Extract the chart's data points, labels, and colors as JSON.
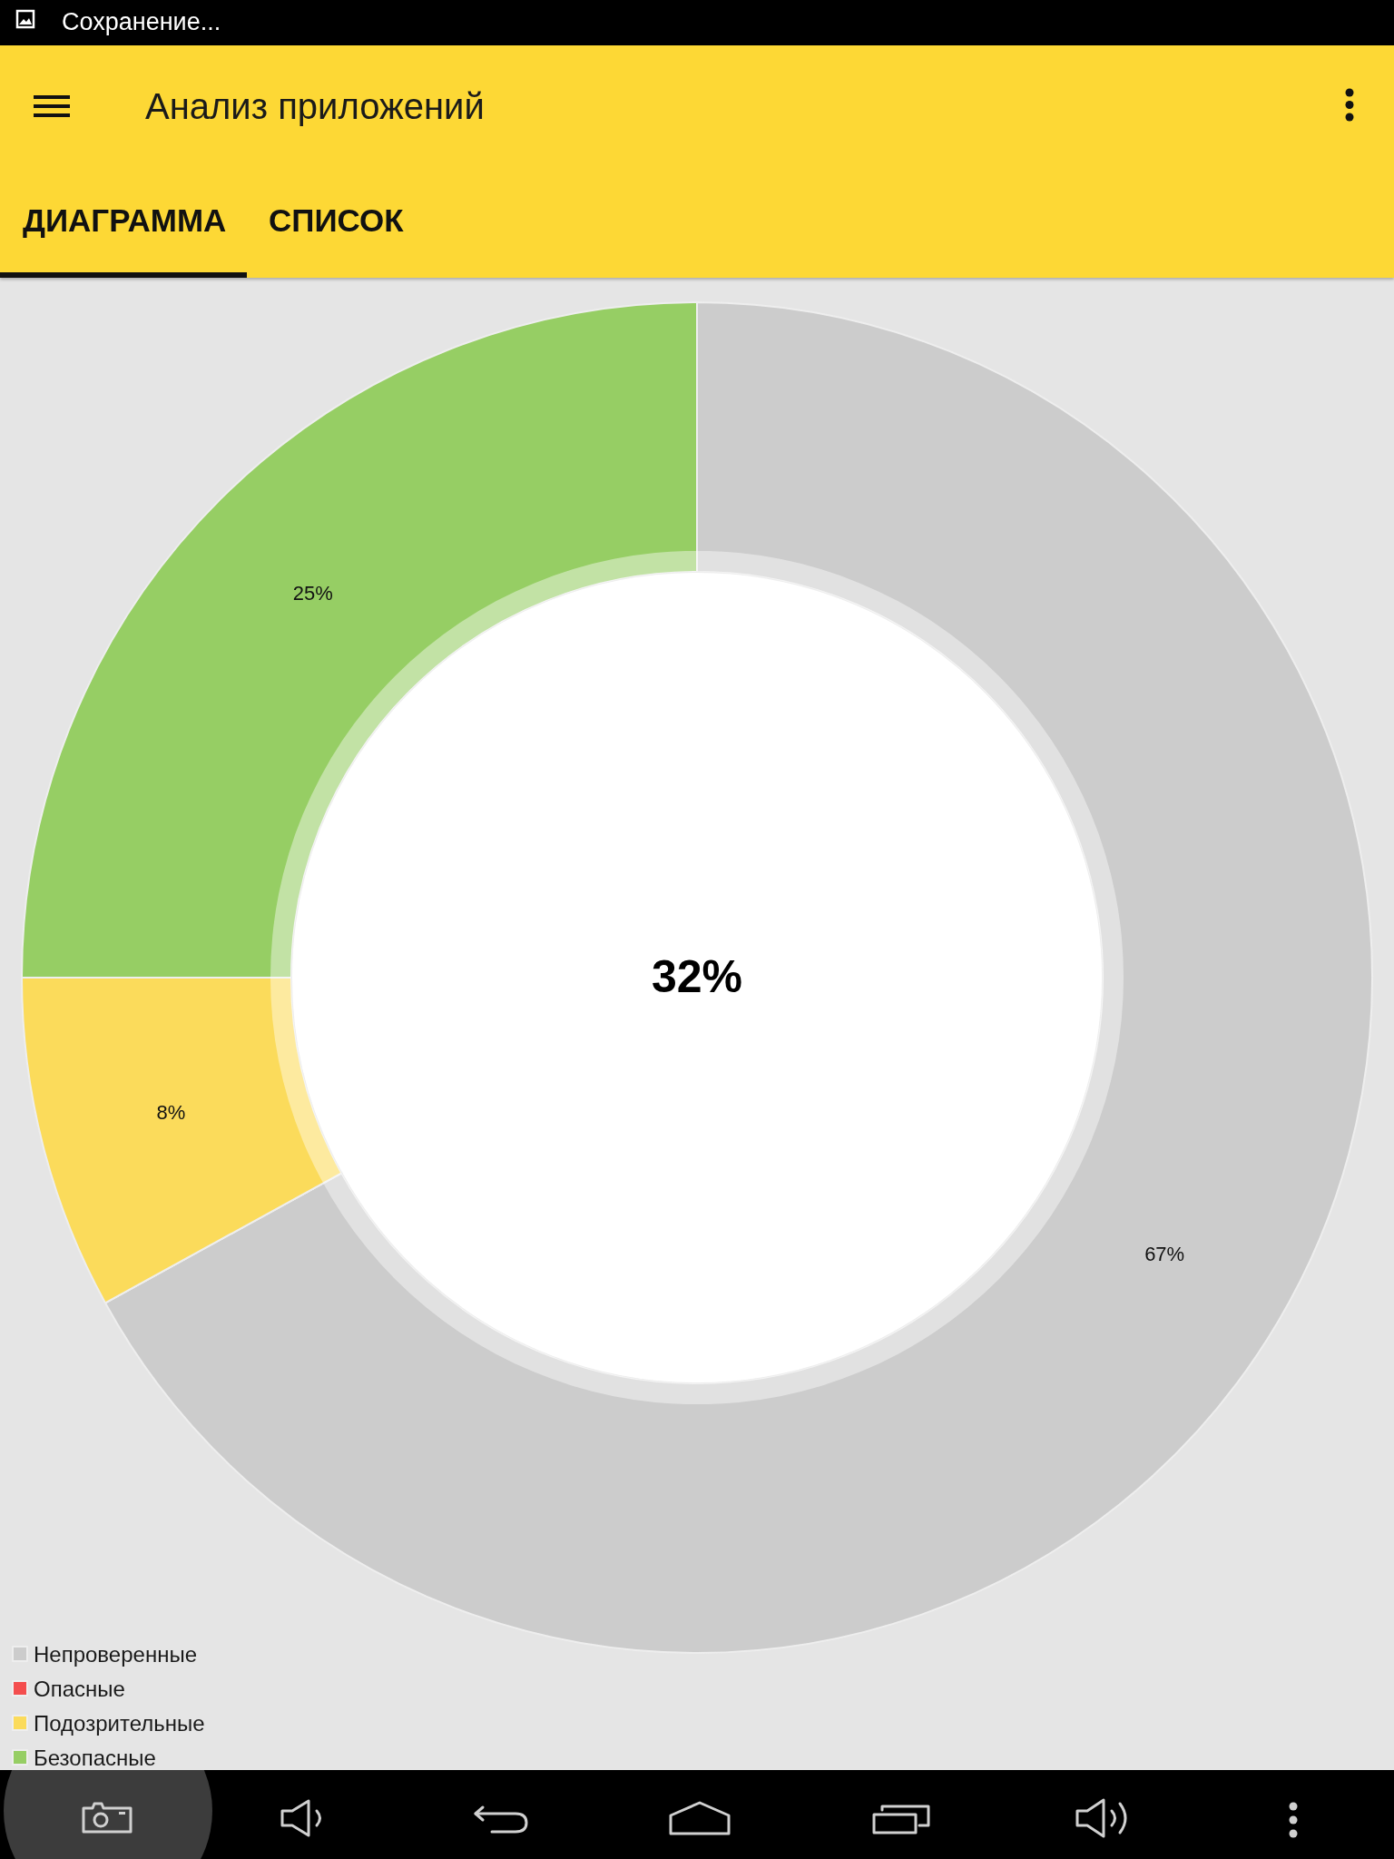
{
  "chart_data": {
    "type": "donut",
    "title": "Анализ приложений",
    "categories": [
      "Непроверенные",
      "Опасные",
      "Подозрительные",
      "Безопасные"
    ],
    "values": [
      67,
      0,
      8,
      25
    ],
    "colors": [
      "#cccccc",
      "#f44e4e",
      "#fbdb5b",
      "#96ce64"
    ],
    "value_labels": [
      "67%",
      null,
      "8%",
      "25%"
    ],
    "legend": "bottom left",
    "annotations": [
      "Сохранение...",
      "ДИАГРАММА",
      "СПИСОК",
      "32%"
    ]
  }
}
